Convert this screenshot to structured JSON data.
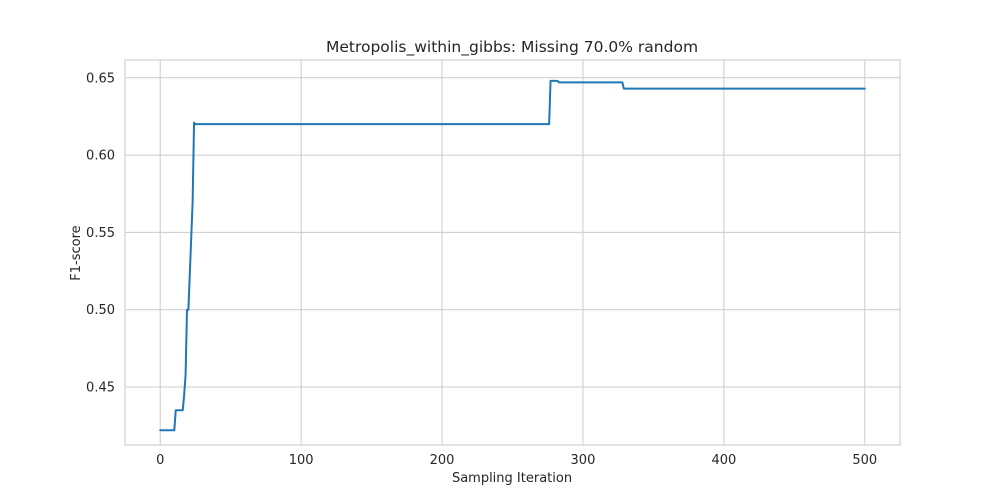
{
  "chart_data": {
    "type": "line",
    "title": "Metropolis_within_gibbs: Missing 70.0% random",
    "xlabel": "Sampling Iteration",
    "ylabel": "F1-score",
    "xlim": [
      -25,
      525
    ],
    "ylim": [
      0.4125,
      0.6615
    ],
    "xticks": [
      0,
      100,
      200,
      300,
      400,
      500
    ],
    "xtick_labels": [
      "0",
      "100",
      "200",
      "300",
      "400",
      "500"
    ],
    "yticks": [
      0.45,
      0.5,
      0.55,
      0.6,
      0.65
    ],
    "ytick_labels": [
      "0.45",
      "0.50",
      "0.55",
      "0.60",
      "0.65"
    ],
    "grid": true,
    "series": [
      {
        "color": "#1f77b4",
        "x": [
          0,
          10,
          11,
          16,
          17,
          18,
          19,
          20,
          23,
          24,
          25,
          276,
          277,
          282,
          283,
          328,
          329,
          500
        ],
        "y": [
          0.422,
          0.422,
          0.435,
          0.435,
          0.445,
          0.458,
          0.5,
          0.5,
          0.57,
          0.621,
          0.62,
          0.62,
          0.648,
          0.648,
          0.647,
          0.647,
          0.643,
          0.643
        ]
      }
    ]
  }
}
